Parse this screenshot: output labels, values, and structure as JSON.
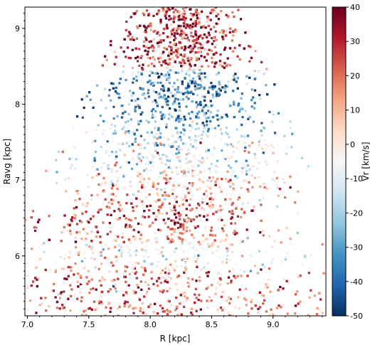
{
  "chart_data": {
    "type": "scatter",
    "title": "",
    "xlabel": "R [kpc]",
    "ylabel": "Ravg [kpc]",
    "xlim": [
      6.98,
      9.43
    ],
    "ylim": [
      5.21,
      9.28
    ],
    "xticks": [
      7.0,
      7.5,
      8.0,
      8.5,
      9.0
    ],
    "xtick_labels": [
      "7.0",
      "7.5",
      "8.0",
      "8.5",
      "9.0"
    ],
    "yticks": [
      6,
      7,
      8,
      9
    ],
    "ytick_labels": [
      "6",
      "7",
      "8",
      "9"
    ],
    "color_variable": "Vr",
    "colorbar": {
      "label": "Vr [km/s]",
      "range": [
        -50,
        40
      ],
      "ticks": [
        40,
        30,
        20,
        10,
        0,
        -10,
        -20,
        -30,
        -40,
        -50
      ],
      "tick_labels": [
        "40",
        "30",
        "20",
        "10",
        "0",
        "-10",
        "-20",
        "-30",
        "-40",
        "-50"
      ],
      "colormap": "RdBu_r",
      "color_stops": [
        "#053061",
        "#2166ac",
        "#4393c3",
        "#92c5de",
        "#d1e5f0",
        "#f7f7f7",
        "#fddbc7",
        "#f4a582",
        "#d6604d",
        "#b2182b",
        "#67001f"
      ]
    },
    "bands": [
      {
        "ravg_center": 8.95,
        "vr": 28
      },
      {
        "ravg_center": 7.95,
        "vr": -35
      },
      {
        "ravg_center": 7.35,
        "vr": -10
      },
      {
        "ravg_center": 6.75,
        "vr": 10
      },
      {
        "ravg_center": 6.42,
        "vr": 32
      },
      {
        "ravg_center": 6.1,
        "vr": -8
      },
      {
        "ravg_center": 5.6,
        "vr": 18
      }
    ],
    "grid": false,
    "legend": "none"
  }
}
